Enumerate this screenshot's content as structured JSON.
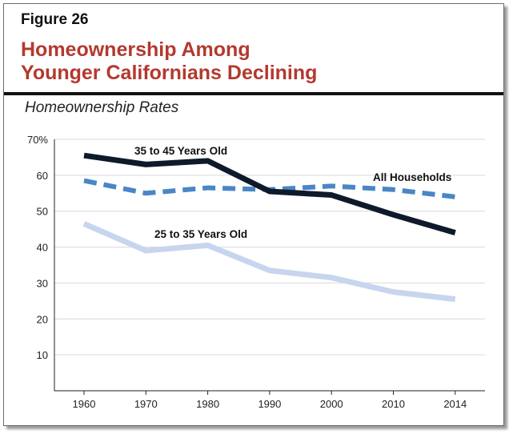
{
  "figure": {
    "label": "Figure 26",
    "title_lines": [
      "Homeownership Among",
      "Younger Californians Declining"
    ],
    "subtitle": "Homeownership Rates"
  },
  "colors": {
    "title": "#b3392f",
    "series_35_45": "#0e1a2b",
    "series_all": "#4a86c6",
    "series_25_35": "#c8d5ee"
  },
  "chart_data": {
    "type": "line",
    "title": "Homeownership Rates",
    "xlabel": "",
    "ylabel": "",
    "categories": [
      "1960",
      "1970",
      "1980",
      "1990",
      "2000",
      "2010",
      "2014"
    ],
    "ylim": [
      0,
      70
    ],
    "yticks": [
      10,
      20,
      30,
      40,
      50,
      60,
      70
    ],
    "ytick_labels": [
      "10",
      "20",
      "30",
      "40",
      "50",
      "60",
      "70%"
    ],
    "grid": true,
    "series": [
      {
        "name": "35 to 45 Years Old",
        "values": [
          65.5,
          63,
          64,
          55.5,
          54.5,
          49,
          44
        ],
        "style": "solid"
      },
      {
        "name": "All Households",
        "values": [
          58.5,
          55,
          56.5,
          56,
          57,
          56,
          54
        ],
        "style": "dashed"
      },
      {
        "name": "25 to 35 Years Old",
        "values": [
          46.5,
          39,
          40.5,
          33.5,
          31.5,
          27.5,
          25.5
        ],
        "style": "solid"
      }
    ]
  }
}
